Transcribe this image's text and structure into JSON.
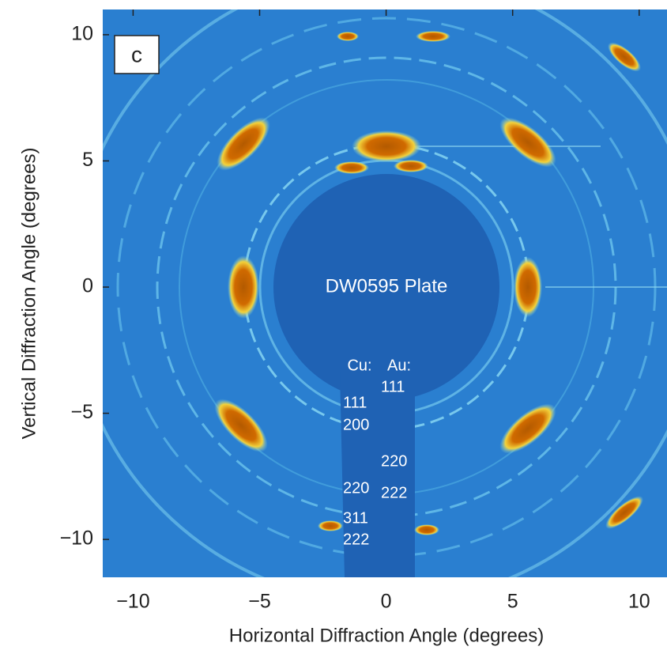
{
  "chart_data": {
    "type": "image",
    "panel_label": "c",
    "x_label": "Horizontal Diffraction Angle (degrees)",
    "y_label": "Vertical Diffraction Angle (degrees)",
    "xlim": [
      -11.2,
      11.1
    ],
    "ylim": [
      -11.5,
      11
    ],
    "xticks": [
      {
        "value": -10,
        "label": "−10"
      },
      {
        "value": -5,
        "label": "−5"
      },
      0,
      5,
      10
    ],
    "yticks": [
      {
        "value": -10,
        "label": "−10"
      },
      {
        "value": -5,
        "label": "−5"
      },
      0,
      5,
      10
    ],
    "annotation": "DW0595 Plate",
    "cu_header": "Cu:",
    "au_header": "Au:",
    "cu_labels": [
      "111",
      "200",
      "220",
      "311",
      "222"
    ],
    "au_labels": [
      "111",
      "220",
      "222"
    ]
  }
}
